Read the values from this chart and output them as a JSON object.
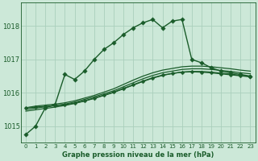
{
  "background_color": "#cce8d8",
  "grid_color": "#aacfbc",
  "line_color": "#1a5c2a",
  "title": "Graphe pression niveau de la mer (hPa)",
  "xlim": [
    -0.5,
    23.5
  ],
  "ylim": [
    1014.5,
    1018.7
  ],
  "yticks": [
    1015,
    1016,
    1017,
    1018
  ],
  "xticks": [
    0,
    1,
    2,
    3,
    4,
    5,
    6,
    7,
    8,
    9,
    10,
    11,
    12,
    13,
    14,
    15,
    16,
    17,
    18,
    19,
    20,
    21,
    22,
    23
  ],
  "series": [
    {
      "x": [
        0,
        1,
        2,
        3,
        4,
        5,
        6,
        7,
        8,
        9,
        10,
        11,
        12,
        13,
        14,
        15,
        16,
        17,
        18,
        19,
        20,
        21,
        22,
        23
      ],
      "y": [
        1014.75,
        1015.0,
        1015.55,
        1015.65,
        1016.55,
        1016.4,
        1016.65,
        1017.0,
        1017.3,
        1017.5,
        1017.75,
        1017.95,
        1018.1,
        1018.2,
        1017.95,
        1018.15,
        1018.2,
        1017.0,
        1016.9,
        1016.75,
        1016.65,
        1016.6,
        1016.55,
        1016.5
      ],
      "marker": "D",
      "ms": 2.8,
      "lw": 1.0,
      "linestyle": "-"
    },
    {
      "x": [
        0,
        1,
        2,
        3,
        4,
        5,
        6,
        7,
        8,
        9,
        10,
        11,
        12,
        13,
        14,
        15,
        16,
        17,
        18,
        19,
        20,
        21,
        22,
        23
      ],
      "y": [
        1015.55,
        1015.6,
        1015.63,
        1015.66,
        1015.7,
        1015.76,
        1015.84,
        1015.92,
        1016.02,
        1016.12,
        1016.25,
        1016.38,
        1016.5,
        1016.6,
        1016.68,
        1016.73,
        1016.78,
        1016.8,
        1016.8,
        1016.78,
        1016.75,
        1016.72,
        1016.68,
        1016.65
      ],
      "marker": null,
      "ms": 0,
      "lw": 0.9,
      "linestyle": "-"
    },
    {
      "x": [
        0,
        1,
        2,
        3,
        4,
        5,
        6,
        7,
        8,
        9,
        10,
        11,
        12,
        13,
        14,
        15,
        16,
        17,
        18,
        19,
        20,
        21,
        22,
        23
      ],
      "y": [
        1015.5,
        1015.54,
        1015.58,
        1015.62,
        1015.66,
        1015.72,
        1015.8,
        1015.88,
        1015.97,
        1016.06,
        1016.18,
        1016.3,
        1016.42,
        1016.52,
        1016.6,
        1016.65,
        1016.7,
        1016.72,
        1016.72,
        1016.7,
        1016.67,
        1016.64,
        1016.6,
        1016.57
      ],
      "marker": null,
      "ms": 0,
      "lw": 0.9,
      "linestyle": "-"
    },
    {
      "x": [
        0,
        1,
        2,
        3,
        4,
        5,
        6,
        7,
        8,
        9,
        10,
        11,
        12,
        13,
        14,
        15,
        16,
        17,
        18,
        19,
        20,
        21,
        22,
        23
      ],
      "y": [
        1015.45,
        1015.49,
        1015.53,
        1015.57,
        1015.62,
        1015.68,
        1015.75,
        1015.83,
        1015.92,
        1016.01,
        1016.12,
        1016.23,
        1016.34,
        1016.44,
        1016.52,
        1016.58,
        1016.62,
        1016.64,
        1016.64,
        1016.62,
        1016.59,
        1016.56,
        1016.52,
        1016.49
      ],
      "marker": null,
      "ms": 0,
      "lw": 0.9,
      "linestyle": "-"
    },
    {
      "x": [
        0,
        1,
        2,
        3,
        4,
        5,
        6,
        7,
        8,
        9,
        10,
        11,
        12,
        13,
        14,
        15,
        16,
        17,
        18,
        19,
        20,
        21,
        22,
        23
      ],
      "y": [
        1015.55,
        1015.57,
        1015.59,
        1015.61,
        1015.64,
        1015.69,
        1015.76,
        1015.84,
        1015.93,
        1016.02,
        1016.13,
        1016.24,
        1016.35,
        1016.45,
        1016.53,
        1016.58,
        1016.62,
        1016.63,
        1016.62,
        1016.6,
        1016.57,
        1016.54,
        1016.51,
        1016.48
      ],
      "marker": "D",
      "ms": 2.5,
      "lw": 1.0,
      "linestyle": "-"
    }
  ]
}
